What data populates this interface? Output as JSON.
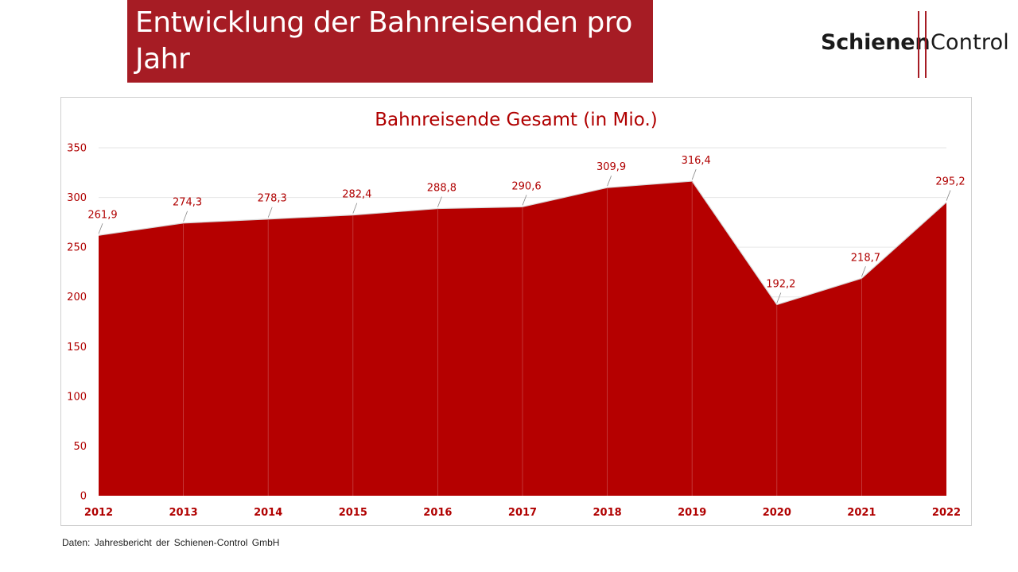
{
  "header": {
    "title": "Entwicklung der Bahnreisenden pro Jahr"
  },
  "logo": {
    "word_left": "Schienen",
    "word_right": "Control",
    "accent_color": "#a61c24"
  },
  "colors": {
    "banner": "#a61c24",
    "area_fill": "#b50000",
    "text_red": "#b00000"
  },
  "chart_data": {
    "type": "area",
    "title": "Bahnreisende Gesamt (in Mio.)",
    "categories": [
      "2012",
      "2013",
      "2014",
      "2015",
      "2016",
      "2017",
      "2018",
      "2019",
      "2020",
      "2021",
      "2022"
    ],
    "values": [
      261.9,
      274.3,
      278.3,
      282.4,
      288.8,
      290.6,
      309.9,
      316.4,
      192.2,
      218.7,
      295.2
    ],
    "data_labels": [
      "261,9",
      "274,3",
      "278,3",
      "282,4",
      "288,8",
      "290,6",
      "309,9",
      "316,4",
      "192,2",
      "218,7",
      "295,2"
    ],
    "ylim": [
      0,
      350
    ],
    "yticks": [
      0,
      50,
      100,
      150,
      200,
      250,
      300,
      350
    ],
    "grid": true,
    "legend": "none"
  },
  "footer": {
    "source": "Daten: Jahresbericht der Schienen-Control GmbH"
  }
}
